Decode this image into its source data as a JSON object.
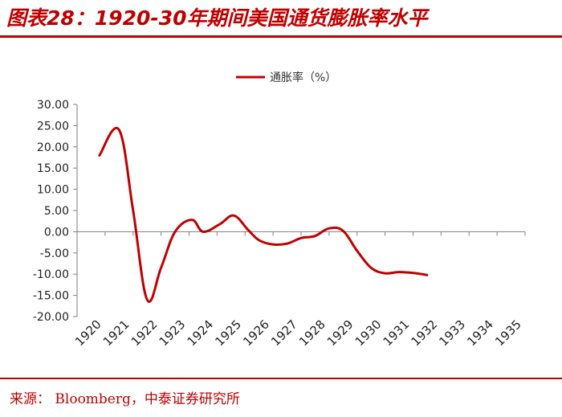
{
  "title": "图表28：1920-30年期间美国通货膨胀率水平",
  "source": "来源：  Bloomberg，中泰证券研究所",
  "colors": {
    "accent": "#c00000",
    "axis": "#7f7f7f",
    "text": "#222222"
  },
  "chart_data": {
    "type": "line",
    "title": "",
    "xlabel": "",
    "ylabel": "",
    "legend": {
      "position": "top-center"
    },
    "ylim": [
      -20,
      30
    ],
    "yticks": [
      "30.00",
      "25.00",
      "20.00",
      "15.00",
      "10.00",
      "5.00",
      "0.00",
      "-5.00",
      "-10.00",
      "-15.00",
      "-20.00"
    ],
    "categories": [
      "1920",
      "1921",
      "1922",
      "1923",
      "1924",
      "1925",
      "1926",
      "1927",
      "1928",
      "1929",
      "1930",
      "1931",
      "1932",
      "1933",
      "1934",
      "1935"
    ],
    "series": [
      {
        "name": "通胀率（%）",
        "color": "#c00000",
        "x": [
          1920.3,
          1921.0,
          1921.5,
          1922.0,
          1922.5,
          1923.0,
          1923.6,
          1924.0,
          1924.6,
          1925.1,
          1925.6,
          1926.0,
          1926.5,
          1927.0,
          1927.5,
          1928.0,
          1928.5,
          1929.0,
          1929.5,
          1930.0,
          1930.5,
          1931.0,
          1931.6,
          1932.0,
          1932.5,
          1933.0,
          1933.5,
          1934.0,
          1934.5,
          1935.0
        ],
        "values": [
          18.0,
          24.0,
          5.0,
          -16.0,
          -8.5,
          0.0,
          2.8,
          0.0,
          1.8,
          3.8,
          0.5,
          -2.0,
          -3.0,
          -2.8,
          -1.5,
          -1.0,
          0.8,
          0.2,
          -4.5,
          -8.5,
          -9.8,
          -9.5,
          -9.8,
          -10.2,
          null,
          null,
          null,
          null,
          null,
          null
        ]
      }
    ]
  }
}
